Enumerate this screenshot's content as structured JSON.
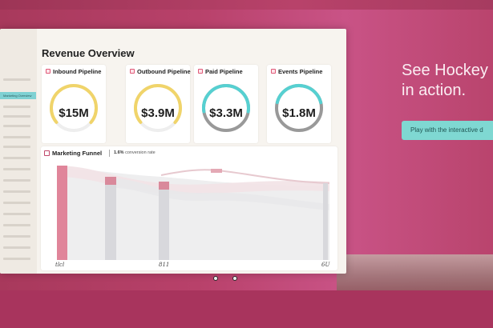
{
  "dashboard": {
    "title": "Revenue Overview",
    "sidebar": {
      "active_item": "Marketing Overview"
    },
    "cards": [
      {
        "label": "Inbound Pipeline",
        "value": "$15M",
        "ring_color": "#f0d46a",
        "ring_fraction": 0.72
      },
      {
        "label": "Outbound Pipeline",
        "value": "$3.9M",
        "ring_color": "#f0d46a",
        "ring_fraction": 0.72
      },
      {
        "label": "Paid Pipeline",
        "value": "$3.3M",
        "ring_color": "#56d0d1",
        "ring_fraction": 0.55
      },
      {
        "label": "Events Pipeline",
        "value": "$1.8M",
        "ring_color": "#56d0d1",
        "ring_fraction": 0.42
      }
    ],
    "funnel": {
      "title": "Marketing Funnel",
      "conversion_value": "1.6%",
      "conversion_suffix": "conversion rate",
      "x_labels": [
        "tlcl",
        "811",
        "6U"
      ]
    }
  },
  "promo": {
    "headline_line1": "See Hockey",
    "headline_line2": "in action.",
    "cta_label": "Play with the interactive d"
  },
  "colors": {
    "background": "#b8416a",
    "accent_teal": "#7fd8d2",
    "accent_pink": "#e0859a"
  }
}
